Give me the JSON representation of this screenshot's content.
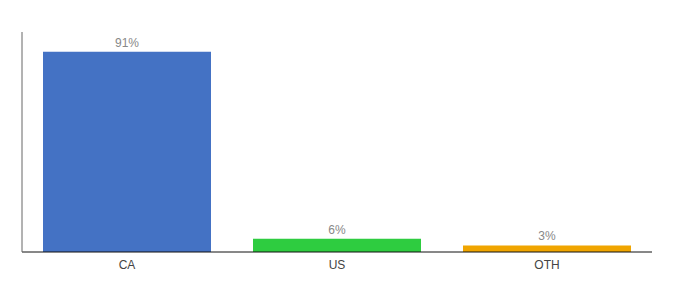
{
  "chart_data": {
    "type": "bar",
    "categories": [
      "CA",
      "US",
      "OTH"
    ],
    "values": [
      91,
      6,
      3
    ],
    "value_labels": [
      "91%",
      "6%",
      "3%"
    ],
    "colors": [
      "#4472c4",
      "#2ecc40",
      "#f0a500"
    ],
    "ylim": [
      0,
      100
    ],
    "grid": false,
    "tick_labels": "x",
    "data_labels": true
  }
}
